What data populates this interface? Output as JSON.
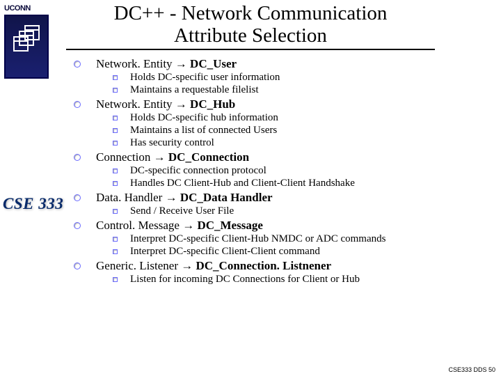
{
  "title": {
    "line1": "DC++ - Network Communication",
    "line2": "Attribute Selection"
  },
  "logo": {
    "text": "UCONN"
  },
  "course": "CSE 333",
  "footer": "CSE333 DDS 50",
  "arrow": "→",
  "colors": {
    "bullet_border": "#6a6aff",
    "title_color": "#000000",
    "course_color": "#072a6a"
  },
  "items": [
    {
      "heading_left": "Network. Entity",
      "heading_right": "DC_User",
      "subs": [
        "Holds DC-specific user information",
        "Maintains a requestable filelist"
      ]
    },
    {
      "heading_left": "Network. Entity",
      "heading_right": "DC_Hub",
      "subs": [
        "Holds DC-specific hub information",
        "Maintains a list of connected Users",
        "Has security control"
      ]
    },
    {
      "heading_left": "Connection",
      "heading_right": "DC_Connection",
      "subs": [
        "DC-specific connection protocol",
        "Handles DC Client-Hub and Client-Client Handshake"
      ]
    },
    {
      "heading_left": "Data. Handler",
      "heading_right": "DC_Data Handler",
      "subs": [
        "Send / Receive User File"
      ]
    },
    {
      "heading_left": "Control. Message",
      "heading_right": "DC_Message",
      "subs": [
        "Interpret DC-specific Client-Hub NMDC or ADC commands",
        "Interpret DC-specific Client-Client command"
      ]
    },
    {
      "heading_left": "Generic. Listener",
      "heading_right": "DC_Connection. Listnener",
      "subs": [
        "Listen for incoming DC Connections for Client or Hub"
      ]
    }
  ]
}
